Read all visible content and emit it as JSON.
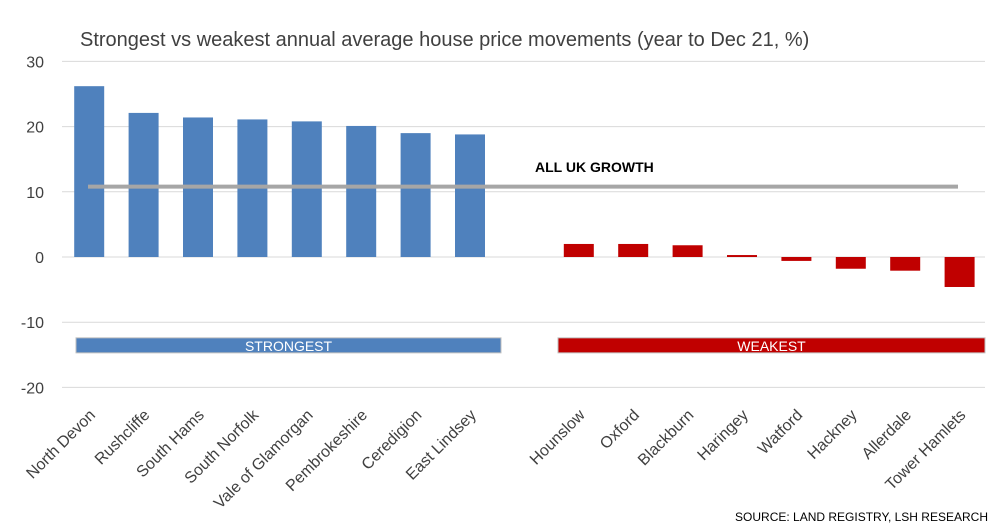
{
  "chart_data": {
    "type": "bar",
    "title": "Strongest vs weakest annual average house price movements (year to Dec 21, %)",
    "categories": [
      "North Devon",
      "Rushcliffe",
      "South Hams",
      "South Norfolk",
      "Vale of Glamorgan",
      "Pembrokeshire",
      "Ceredigion",
      "East Lindsey",
      "",
      "Hounslow",
      "Oxford",
      "Blackburn",
      "Haringey",
      "Watford",
      "Hackney",
      "Allerdale",
      "Tower Hamlets"
    ],
    "series": [
      {
        "name": "Strongest",
        "color": "#4f81bd",
        "values": [
          26.2,
          22.1,
          21.4,
          21.1,
          20.8,
          20.1,
          19.0,
          18.8,
          null,
          null,
          null,
          null,
          null,
          null,
          null,
          null,
          null
        ]
      },
      {
        "name": "Weakest",
        "color": "#c00000",
        "values": [
          null,
          null,
          null,
          null,
          null,
          null,
          null,
          null,
          null,
          2.0,
          2.0,
          1.8,
          0.3,
          -0.6,
          -1.8,
          -2.1,
          -4.6
        ]
      }
    ],
    "yticks": [
      30,
      20,
      10,
      0,
      -10,
      -20
    ],
    "ylim": [
      -20,
      30
    ],
    "grid": true,
    "reference_line": {
      "label": "ALL UK GROWTH",
      "value": 10.8,
      "color": "#a6a6a6"
    },
    "groups": [
      {
        "label": "STRONGEST",
        "color": "#4f81bd",
        "from": "North Devon",
        "to": "East Lindsey"
      },
      {
        "label": "WEAKEST",
        "color": "#c00000",
        "from": "Hounslow",
        "to": "Tower Hamlets"
      }
    ],
    "source": "SOURCE: LAND REGISTRY, LSH RESEARCH"
  }
}
